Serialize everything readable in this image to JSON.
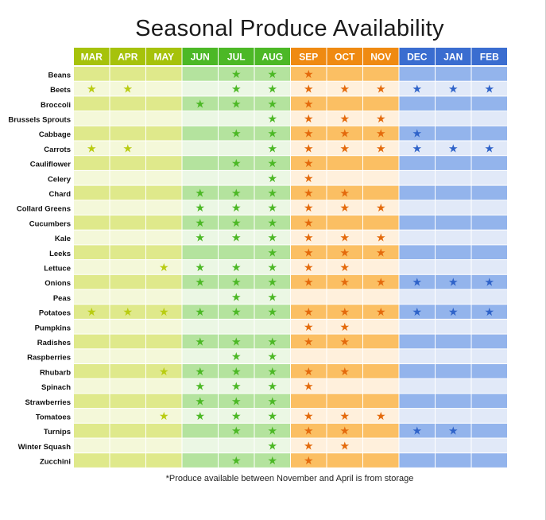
{
  "chart_data": {
    "type": "table",
    "title": "Seasonal Produce Availability",
    "footnote": "*Produce available between November and April is from storage",
    "months": [
      "MAR",
      "APR",
      "MAY",
      "JUN",
      "JUL",
      "AUG",
      "SEP",
      "OCT",
      "NOV",
      "DEC",
      "JAN",
      "FEB"
    ],
    "season_of_month": [
      "spring",
      "spring",
      "spring",
      "summer",
      "summer",
      "summer",
      "fall",
      "fall",
      "fall",
      "winter",
      "winter",
      "winter"
    ],
    "season_colors": {
      "spring": {
        "header": "#a6c20b",
        "dark": "#dfe98b",
        "light": "#f4f8d9",
        "star": "#b9cc12"
      },
      "summer": {
        "header": "#4cb826",
        "dark": "#b4e39e",
        "light": "#ebf7e4",
        "star": "#4cb826"
      },
      "fall": {
        "header": "#ef8a12",
        "dark": "#fbbf63",
        "light": "#fff0dc",
        "star": "#e46a0c"
      },
      "winter": {
        "header": "#3a6dd0",
        "dark": "#93b4ec",
        "light": "#e1e9f8",
        "star": "#2f63c9"
      }
    },
    "star_symbol": "★",
    "produce": [
      {
        "name": "Beans",
        "months": [
          "JUL",
          "AUG",
          "SEP"
        ]
      },
      {
        "name": "Beets",
        "months": [
          "MAR",
          "APR",
          "JUL",
          "AUG",
          "SEP",
          "OCT",
          "NOV",
          "DEC",
          "JAN",
          "FEB"
        ]
      },
      {
        "name": "Broccoli",
        "months": [
          "JUN",
          "JUL",
          "AUG",
          "SEP"
        ]
      },
      {
        "name": "Brussels Sprouts",
        "months": [
          "AUG",
          "SEP",
          "OCT",
          "NOV"
        ]
      },
      {
        "name": "Cabbage",
        "months": [
          "JUL",
          "AUG",
          "SEP",
          "OCT",
          "NOV",
          "DEC"
        ]
      },
      {
        "name": "Carrots",
        "months": [
          "MAR",
          "APR",
          "AUG",
          "SEP",
          "OCT",
          "NOV",
          "DEC",
          "JAN",
          "FEB"
        ]
      },
      {
        "name": "Cauliflower",
        "months": [
          "JUL",
          "AUG",
          "SEP"
        ]
      },
      {
        "name": "Celery",
        "months": [
          "AUG",
          "SEP"
        ]
      },
      {
        "name": "Chard",
        "months": [
          "JUN",
          "JUL",
          "AUG",
          "SEP",
          "OCT"
        ]
      },
      {
        "name": "Collard Greens",
        "months": [
          "JUN",
          "JUL",
          "AUG",
          "SEP",
          "OCT",
          "NOV"
        ]
      },
      {
        "name": "Cucumbers",
        "months": [
          "JUN",
          "JUL",
          "AUG",
          "SEP"
        ]
      },
      {
        "name": "Kale",
        "months": [
          "JUN",
          "JUL",
          "AUG",
          "SEP",
          "OCT",
          "NOV"
        ]
      },
      {
        "name": "Leeks",
        "months": [
          "AUG",
          "SEP",
          "OCT",
          "NOV"
        ]
      },
      {
        "name": "Lettuce",
        "months": [
          "MAY",
          "JUN",
          "JUL",
          "AUG",
          "SEP",
          "OCT"
        ]
      },
      {
        "name": "Onions",
        "months": [
          "JUN",
          "JUL",
          "AUG",
          "SEP",
          "OCT",
          "NOV",
          "DEC",
          "JAN",
          "FEB"
        ]
      },
      {
        "name": "Peas",
        "months": [
          "JUL",
          "AUG"
        ]
      },
      {
        "name": "Potatoes",
        "months": [
          "MAR",
          "APR",
          "MAY",
          "JUN",
          "JUL",
          "AUG",
          "SEP",
          "OCT",
          "NOV",
          "DEC",
          "JAN",
          "FEB"
        ]
      },
      {
        "name": "Pumpkins",
        "months": [
          "SEP",
          "OCT"
        ]
      },
      {
        "name": "Radishes",
        "months": [
          "JUN",
          "JUL",
          "AUG",
          "SEP",
          "OCT"
        ]
      },
      {
        "name": "Raspberries",
        "months": [
          "JUL",
          "AUG"
        ]
      },
      {
        "name": "Rhubarb",
        "months": [
          "MAY",
          "JUN",
          "JUL",
          "AUG",
          "SEP",
          "OCT"
        ]
      },
      {
        "name": "Spinach",
        "months": [
          "JUN",
          "JUL",
          "AUG",
          "SEP"
        ]
      },
      {
        "name": "Strawberries",
        "months": [
          "JUN",
          "JUL",
          "AUG"
        ]
      },
      {
        "name": "Tomatoes",
        "months": [
          "MAY",
          "JUN",
          "JUL",
          "AUG",
          "SEP",
          "OCT",
          "NOV"
        ]
      },
      {
        "name": "Turnips",
        "months": [
          "JUL",
          "AUG",
          "SEP",
          "OCT",
          "DEC",
          "JAN"
        ]
      },
      {
        "name": "Winter Squash",
        "months": [
          "AUG",
          "SEP",
          "OCT"
        ]
      },
      {
        "name": "Zucchini",
        "months": [
          "JUL",
          "AUG",
          "SEP"
        ]
      }
    ]
  }
}
